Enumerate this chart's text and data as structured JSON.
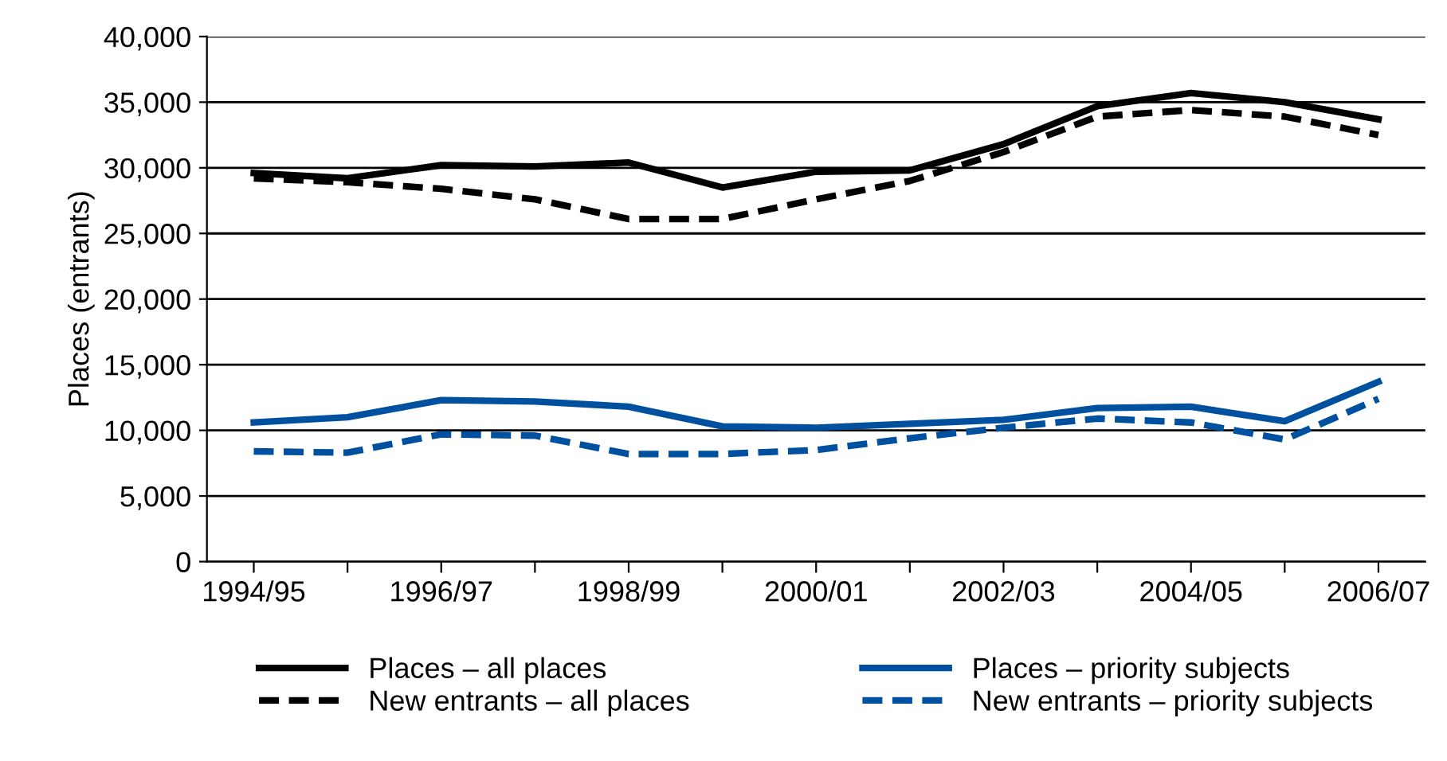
{
  "chart_data": {
    "type": "line",
    "ylabel": "Places (entrants)",
    "categories": [
      "1994/95",
      null,
      "1996/97",
      null,
      "1998/99",
      null,
      "2000/01",
      null,
      "2002/03",
      null,
      "2004/05",
      null,
      "2006/07"
    ],
    "series": [
      {
        "name": "Places – all places",
        "color": "#000000",
        "line_style": "solid",
        "values": [
          29600,
          29200,
          30200,
          30100,
          30400,
          28500,
          29700,
          29800,
          31800,
          34700,
          35700,
          35000,
          33700
        ]
      },
      {
        "name": "New entrants – all places",
        "color": "#000000",
        "line_style": "dashed",
        "values": [
          29200,
          28900,
          28400,
          27600,
          26100,
          26100,
          27600,
          29000,
          31200,
          33900,
          34400,
          33900,
          32500
        ]
      },
      {
        "name": "Places – priority subjects",
        "color": "#0050a0",
        "line_style": "solid",
        "values": [
          10600,
          11000,
          12300,
          12200,
          11800,
          10300,
          10200,
          10500,
          10800,
          11700,
          11800,
          10700,
          13700
        ]
      },
      {
        "name": "New entrants – priority subjects",
        "color": "#0050a0",
        "line_style": "dashed",
        "values": [
          8400,
          8300,
          9700,
          9600,
          8200,
          8200,
          8500,
          9400,
          10200,
          10900,
          10600,
          9300,
          12400
        ]
      }
    ],
    "ylim": [
      0,
      40000
    ],
    "yticks": [
      {
        "value": 0,
        "label": "0"
      },
      {
        "value": 5000,
        "label": "5,000"
      },
      {
        "value": 10000,
        "label": "10,000"
      },
      {
        "value": 15000,
        "label": "15,000"
      },
      {
        "value": 20000,
        "label": "20,000"
      },
      {
        "value": 25000,
        "label": "25,000"
      },
      {
        "value": 30000,
        "label": "30,000"
      },
      {
        "value": 35000,
        "label": "35,000"
      },
      {
        "value": 40000,
        "label": "40,000"
      }
    ],
    "grid": "y",
    "legend": "bottom",
    "marker": "none"
  }
}
